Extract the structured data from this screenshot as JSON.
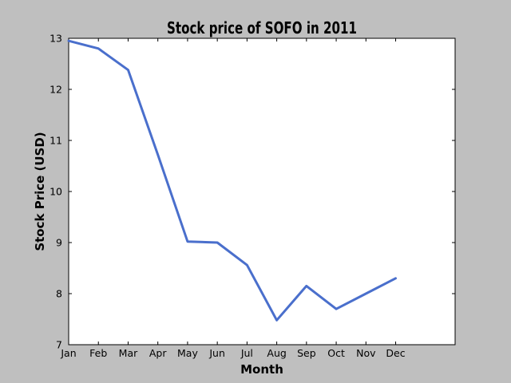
{
  "chart_data": {
    "type": "line",
    "title": "Stock price of SOFO in 2011",
    "xlabel": "Month",
    "ylabel": "Stock Price (USD)",
    "categories": [
      "Jan",
      "Feb",
      "Mar",
      "Apr",
      "May",
      "Jun",
      "Jul",
      "Aug",
      "Sep",
      "Oct",
      "Nov",
      "Dec"
    ],
    "series": [
      {
        "values": [
          12.95,
          12.8,
          12.38,
          10.72,
          9.02,
          9.0,
          8.56,
          7.48,
          8.15,
          7.7,
          8.0,
          8.3
        ],
        "color": "#4a6fcc"
      }
    ],
    "ylim": [
      7,
      13
    ],
    "yticks": [
      7,
      8,
      9,
      10,
      11,
      12,
      13
    ],
    "grid": false,
    "legend": "none"
  }
}
